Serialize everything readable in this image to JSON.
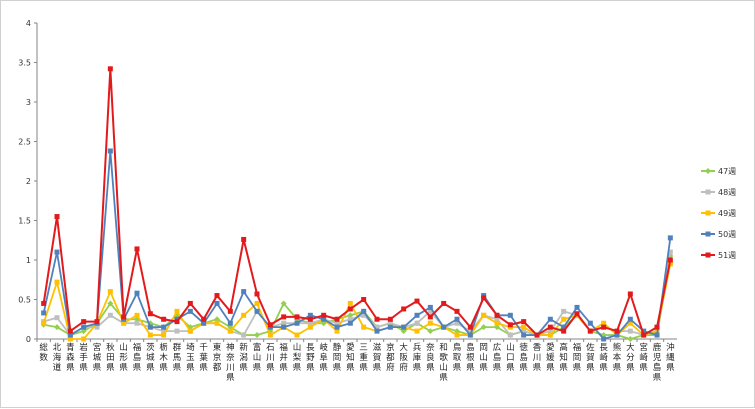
{
  "chart_data": {
    "type": "line",
    "title": "",
    "xlabel": "",
    "ylabel": "",
    "ylim": [
      0,
      4
    ],
    "yticks": [
      "0",
      "0.5",
      "1",
      "1.5",
      "2",
      "2.5",
      "3",
      "3.5",
      "4"
    ],
    "grid": false,
    "legend_position": "right",
    "categories": [
      "総数",
      "北海道",
      "青森県",
      "岩手県",
      "宮城県",
      "秋田県",
      "山形県",
      "福島県",
      "茨城県",
      "栃木県",
      "群馬県",
      "埼玉県",
      "千葉県",
      "東京都",
      "神奈川県",
      "新潟県",
      "富山県",
      "石川県",
      "福井県",
      "山梨県",
      "長野県",
      "岐阜県",
      "静岡県",
      "愛知県",
      "三重県",
      "滋賀県",
      "京都府",
      "大阪府",
      "兵庫県",
      "奈良県",
      "和歌山県",
      "鳥取県",
      "島根県",
      "岡山県",
      "広島県",
      "山口県",
      "徳島県",
      "香川県",
      "愛媛県",
      "高知県",
      "福岡県",
      "佐賀県",
      "長崎県",
      "熊本県",
      "大分県",
      "宮崎県",
      "鹿児島県",
      "沖縄県"
    ],
    "series": [
      {
        "name": "47週",
        "color": "#92d050",
        "marker": "diamond",
        "values": [
          0.18,
          0.15,
          0.05,
          0.1,
          0.2,
          0.45,
          0.25,
          0.25,
          0.2,
          0.15,
          0.3,
          0.15,
          0.2,
          0.25,
          0.15,
          0.05,
          0.05,
          0.1,
          0.45,
          0.25,
          0.2,
          0.2,
          0.25,
          0.3,
          0.35,
          0.15,
          0.2,
          0.1,
          0.2,
          0.1,
          0.15,
          0.1,
          0.05,
          0.15,
          0.15,
          0.05,
          0.1,
          0.05,
          0.05,
          0.15,
          0.3,
          0.1,
          0.05,
          0.05,
          0.0,
          0.05,
          0.05,
          1.05
        ]
      },
      {
        "name": "48週",
        "color": "#bfbfbf",
        "marker": "square",
        "values": [
          0.22,
          0.27,
          0.05,
          0.15,
          0.15,
          0.3,
          0.2,
          0.2,
          0.15,
          0.1,
          0.1,
          0.1,
          0.2,
          0.2,
          0.1,
          0.05,
          0.35,
          0.15,
          0.2,
          0.2,
          0.2,
          0.25,
          0.2,
          0.25,
          0.3,
          0.15,
          0.2,
          0.15,
          0.2,
          0.35,
          0.15,
          0.2,
          0.1,
          0.3,
          0.25,
          0.05,
          0.1,
          0.05,
          0.1,
          0.35,
          0.3,
          0.1,
          0.15,
          0.1,
          0.1,
          0.05,
          0.1,
          1.1
        ]
      },
      {
        "name": "49週",
        "color": "#ffc000",
        "marker": "square",
        "values": [
          0.2,
          0.72,
          0.0,
          0.0,
          0.2,
          0.6,
          0.2,
          0.3,
          0.05,
          0.05,
          0.35,
          0.1,
          0.2,
          0.2,
          0.1,
          0.3,
          0.45,
          0.05,
          0.15,
          0.05,
          0.15,
          0.25,
          0.1,
          0.45,
          0.15,
          0.1,
          0.15,
          0.15,
          0.1,
          0.2,
          0.15,
          0.05,
          0.05,
          0.3,
          0.2,
          0.15,
          0.15,
          0.05,
          0.05,
          0.25,
          0.3,
          0.1,
          0.2,
          0.05,
          0.2,
          0.05,
          0.1,
          0.95
        ]
      },
      {
        "name": "50週",
        "color": "#4f81bd",
        "marker": "square",
        "values": [
          0.33,
          1.1,
          0.05,
          0.15,
          0.2,
          2.38,
          0.25,
          0.58,
          0.15,
          0.15,
          0.25,
          0.35,
          0.2,
          0.45,
          0.2,
          0.6,
          0.35,
          0.15,
          0.15,
          0.2,
          0.3,
          0.25,
          0.15,
          0.2,
          0.35,
          0.1,
          0.15,
          0.15,
          0.3,
          0.4,
          0.15,
          0.25,
          0.05,
          0.55,
          0.3,
          0.3,
          0.05,
          0.05,
          0.25,
          0.15,
          0.4,
          0.2,
          0.0,
          0.05,
          0.25,
          0.1,
          0.05,
          1.28
        ]
      },
      {
        "name": "51週",
        "color": "#e31a1c",
        "marker": "square",
        "values": [
          0.45,
          1.55,
          0.1,
          0.22,
          0.22,
          3.42,
          0.28,
          1.14,
          0.32,
          0.25,
          0.22,
          0.45,
          0.25,
          0.55,
          0.35,
          1.26,
          0.57,
          0.18,
          0.28,
          0.28,
          0.25,
          0.3,
          0.25,
          0.38,
          0.5,
          0.25,
          0.25,
          0.38,
          0.48,
          0.28,
          0.45,
          0.35,
          0.15,
          0.52,
          0.3,
          0.18,
          0.22,
          0.05,
          0.15,
          0.1,
          0.32,
          0.1,
          0.15,
          0.1,
          0.57,
          0.05,
          0.15,
          1.0
        ]
      }
    ]
  }
}
